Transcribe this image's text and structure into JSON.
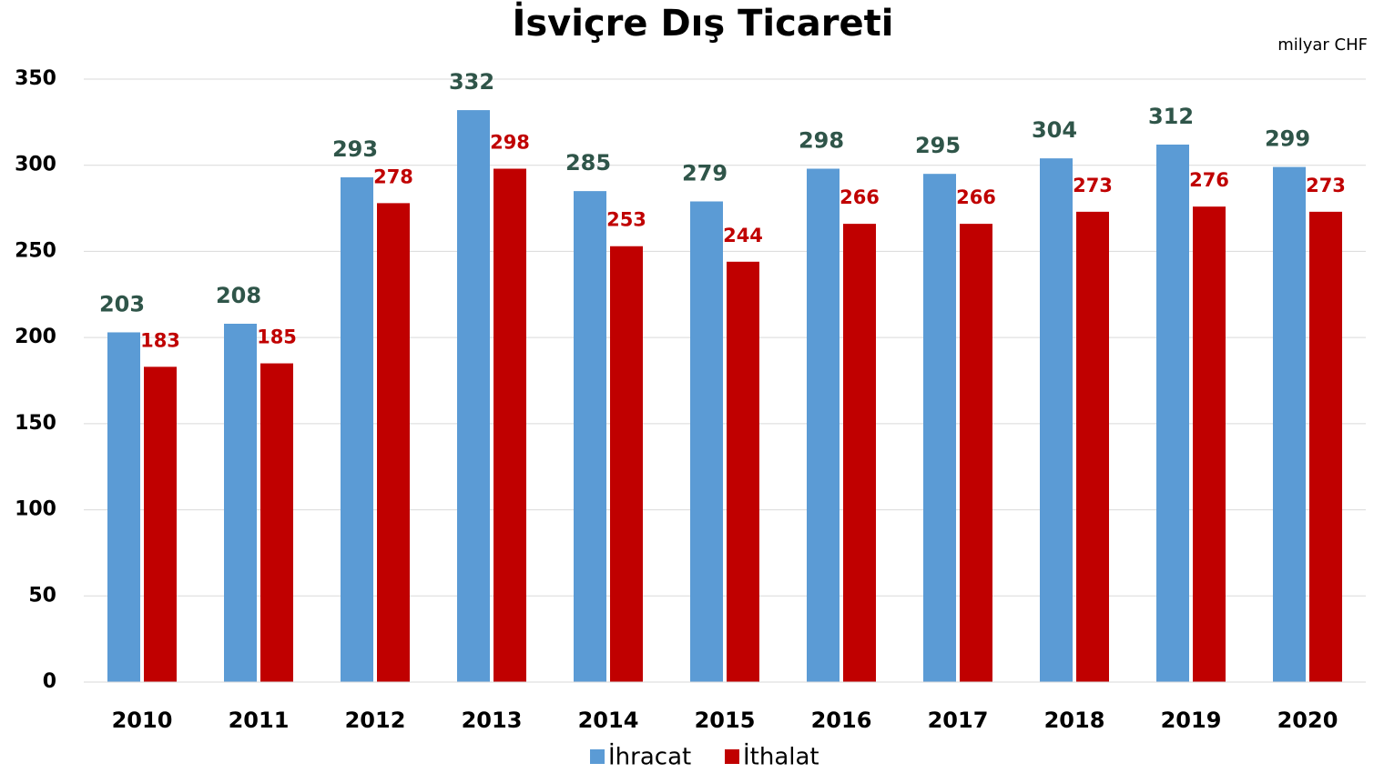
{
  "chart_data": {
    "type": "bar",
    "title": "İsviçre Dış Ticareti",
    "unit_label": "milyar CHF",
    "categories": [
      "2010",
      "2011",
      "2012",
      "2013",
      "2014",
      "2015",
      "2016",
      "2017",
      "2018",
      "2019",
      "2020"
    ],
    "series": [
      {
        "name": "İhracat",
        "color": "#5b9bd5",
        "values": [
          203,
          208,
          293,
          332,
          285,
          279,
          298,
          295,
          304,
          312,
          299
        ]
      },
      {
        "name": "İthalat",
        "color": "#c00000",
        "values": [
          183,
          185,
          278,
          298,
          253,
          244,
          266,
          266,
          273,
          276,
          273
        ]
      }
    ],
    "ylim": [
      0,
      350
    ],
    "yticks": [
      0,
      50,
      100,
      150,
      200,
      250,
      300,
      350
    ],
    "grid": true,
    "legend": "bottom"
  }
}
